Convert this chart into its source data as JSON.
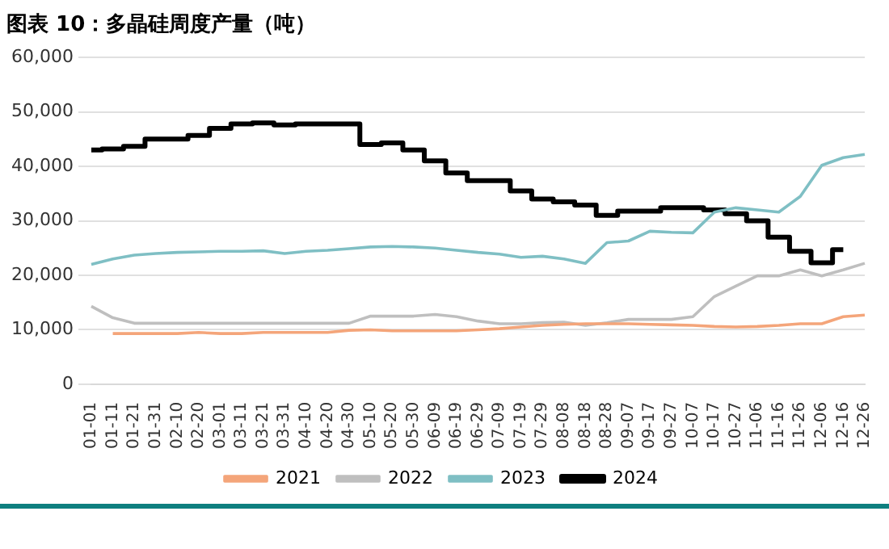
{
  "chart_data": {
    "type": "line",
    "title": "图表 10：多晶硅周度产量（吨）",
    "categories": [
      "01-01",
      "01-11",
      "01-21",
      "01-31",
      "02-10",
      "02-20",
      "03-01",
      "03-11",
      "03-21",
      "03-31",
      "04-10",
      "04-20",
      "04-30",
      "05-10",
      "05-20",
      "05-30",
      "06-09",
      "06-19",
      "06-29",
      "07-09",
      "07-19",
      "07-29",
      "08-08",
      "08-18",
      "08-28",
      "09-07",
      "09-17",
      "09-27",
      "10-07",
      "10-17",
      "10-27",
      "11-06",
      "11-16",
      "11-26",
      "12-06",
      "12-16",
      "12-26"
    ],
    "series": [
      {
        "name": "2021",
        "color": "#f4a57a",
        "values": [
          null,
          9300,
          9300,
          9300,
          9300,
          9500,
          9300,
          9300,
          9500,
          9500,
          9500,
          9500,
          9900,
          10000,
          9800,
          9800,
          9800,
          9800,
          10000,
          10200,
          10500,
          10800,
          11000,
          11100,
          11100,
          11100,
          11000,
          10900,
          10800,
          10600,
          10500,
          10600,
          10800,
          11100,
          11100,
          12400,
          12700
        ]
      },
      {
        "name": "2022",
        "color": "#bfbfbf",
        "values": [
          14300,
          12200,
          11200,
          11200,
          11200,
          11200,
          11200,
          11200,
          11200,
          11200,
          11200,
          11200,
          11200,
          12500,
          12500,
          12500,
          12800,
          12400,
          11600,
          11100,
          11100,
          11300,
          11400,
          10800,
          11300,
          11900,
          11900,
          11900,
          12400,
          16100,
          18000,
          19900,
          19900,
          21000,
          19900,
          21000,
          22200
        ]
      },
      {
        "name": "2023",
        "color": "#7fbfc4",
        "values": [
          22000,
          23000,
          23700,
          24000,
          24200,
          24300,
          24400,
          24400,
          24500,
          24000,
          24400,
          24600,
          24900,
          25200,
          25300,
          25200,
          25000,
          24600,
          24200,
          23900,
          23300,
          23500,
          23000,
          22200,
          26000,
          26300,
          28100,
          27900,
          27800,
          31600,
          32400,
          32000,
          31600,
          34500,
          40200,
          41600,
          42200
        ]
      },
      {
        "name": "2024",
        "type": "step",
        "color": "#000000",
        "values": [
          43000,
          43200,
          43700,
          45000,
          45000,
          45700,
          47000,
          47800,
          48000,
          47600,
          47800,
          47800,
          47800,
          44000,
          44300,
          43000,
          41000,
          38800,
          37400,
          37400,
          35500,
          34000,
          33500,
          32900,
          31000,
          31800,
          31800,
          32400,
          32400,
          32000,
          31300,
          30000,
          27000,
          24400,
          22300,
          24700,
          null
        ]
      }
    ],
    "ylim": [
      0,
      60000
    ],
    "yticks": [
      0,
      {
        "value": 10000,
        "label": "10,000"
      },
      {
        "value": 20000,
        "label": "20,000"
      },
      {
        "value": 30000,
        "label": "30,000"
      },
      {
        "value": 40000,
        "label": "40,000"
      },
      {
        "value": 50000,
        "label": "50,000"
      },
      {
        "value": 60000,
        "label": "60,000"
      }
    ],
    "grid": "y",
    "legend": "bottom"
  }
}
